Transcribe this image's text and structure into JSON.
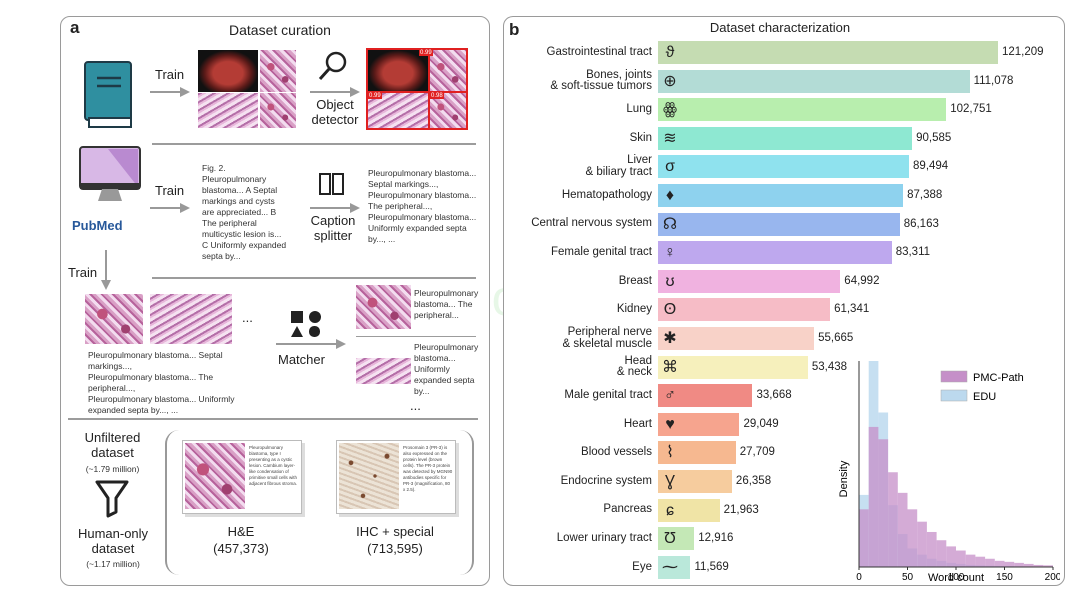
{
  "panel_a": {
    "label": "a",
    "title": "Dataset curation",
    "train_labels": [
      "Train",
      "Train",
      "Train"
    ],
    "object_detector": "Object\ndetector",
    "caption_splitter": "Caption\nsplitter",
    "matcher": "Matcher",
    "pubmed": "PubMed",
    "fig_caption": "Fig. 2.\nPleuropulmonary\nblastoma... A Septal\nmarkings and cysts\nare appreciated... B\nThe peripheral\nmulticystic lesion is...\nC Uniformly expanded\nsepta by...",
    "split_captions": "Pleuropulmonary blastoma...\nSeptal markings...,\nPleuropulmonary blastoma...\nThe peripheral...,\nPleuropulmonary blastoma...\nUniformly expanded septa\nby..., ...",
    "ellipsis": "...",
    "matched_left_caption": "Pleuropulmonary blastoma... Septal\nmarkings...,\nPleuropulmonary blastoma... The\nperipheral...,\nPleuropulmonary blastoma... Uniformly\nexpanded septa by..., ...",
    "matched_right_1": "Pleuropulmonary\nblastoma... The\nperipheral...",
    "matched_right_2": "Pleuropulmonary\nblastoma...\nUniformly\nexpanded septa\nby...",
    "unfiltered_label": "Unfiltered\ndataset",
    "unfiltered_count": "(~1.79 million)",
    "human_label": "Human-only\ndataset",
    "human_count": "(~1.17 million)",
    "he_label": "H&E",
    "he_count": "(457,373)",
    "ihc_label": "IHC + special",
    "ihc_count": "(713,595)",
    "he_card_text": "Pleuropulmonary blastoma, type I presenting as a cystic lesion. Cambium layer-like condensation of primitive small cells with adjacent fibrous stroma.",
    "ihc_card_text": "Prosomain 3 (PR-3) is also expressed on the protein level (brown cells). The PR-3 protein was detected by MGN90 antibodies specific for PR-3 (magnification, 80 x 2.5).",
    "detect_scores": [
      "0.99",
      "0.99",
      "0.98"
    ]
  },
  "panel_b": {
    "label": "b",
    "title": "Dataset characterization"
  },
  "chart_data": [
    {
      "type": "bar",
      "orientation": "horizontal",
      "categories": [
        "Gastrointestinal tract",
        "Bones, joints\n& soft-tissue tumors",
        "Lung",
        "Skin",
        "Liver\n& biliary tract",
        "Hematopathology",
        "Central nervous system",
        "Female genital tract",
        "Breast",
        "Kidney",
        "Peripheral nerve\n& skeletal muscle",
        "Head\n& neck",
        "Male genital tract",
        "Heart",
        "Blood vessels",
        "Endocrine system",
        "Pancreas",
        "Lower urinary tract",
        "Eye"
      ],
      "values": [
        121209,
        111078,
        102751,
        90585,
        89494,
        87388,
        86163,
        83311,
        64992,
        61341,
        55665,
        53438,
        33668,
        29049,
        27709,
        26358,
        21963,
        12916,
        11569
      ],
      "value_labels": [
        "121,209",
        "111,078",
        "102,751",
        "90,585",
        "89,494",
        "87,388",
        "86,163",
        "83,311",
        "64,992",
        "61,341",
        "55,665",
        "53,438",
        "33,668",
        "29,049",
        "27,709",
        "26,358",
        "21,963",
        "12,916",
        "11,569"
      ],
      "colors": [
        "#c5dcb2",
        "#b3dcd6",
        "#b8eeae",
        "#8ee8d2",
        "#8fe2ee",
        "#8ed2ee",
        "#98b6ee",
        "#bea8ee",
        "#f0b2e0",
        "#f6bcc6",
        "#f8d2c8",
        "#f6f0bc",
        "#f08a84",
        "#f6a48e",
        "#f6b890",
        "#f6cc9e",
        "#f0e4a6",
        "#c4e8b6",
        "#bae8da"
      ],
      "icons": [
        "stomach-icon",
        "bone-icon",
        "lung-icon",
        "skin-icon",
        "liver-icon",
        "blood-drop-icon",
        "brain-icon",
        "female-icon",
        "breast-icon",
        "kidney-icon",
        "nerve-icon",
        "head-neck-icon",
        "male-icon",
        "heart-icon",
        "blood-vessel-icon",
        "thyroid-icon",
        "pancreas-icon",
        "bladder-icon",
        "eye-icon"
      ],
      "xlim": [
        0,
        121209
      ]
    },
    {
      "type": "histogram",
      "xlabel": "Word count",
      "ylabel": "Density",
      "xlim": [
        0,
        200
      ],
      "xticks": [
        "0",
        "50",
        "100",
        "150",
        "200"
      ],
      "legend_placement": "top-right",
      "bin_edges": [
        0,
        10,
        20,
        30,
        40,
        50,
        60,
        70,
        80,
        90,
        100,
        110,
        120,
        130,
        140,
        150,
        160,
        170,
        180,
        190,
        200
      ],
      "series": [
        {
          "name": "PMC-Path",
          "color": "#c58fc8",
          "values": [
            0.28,
            0.68,
            0.62,
            0.46,
            0.36,
            0.28,
            0.22,
            0.17,
            0.13,
            0.1,
            0.08,
            0.06,
            0.05,
            0.04,
            0.03,
            0.025,
            0.02,
            0.015,
            0.01,
            0.008
          ]
        },
        {
          "name": "EDU",
          "color": "#bcd9ee",
          "values": [
            0.35,
            1.0,
            0.75,
            0.3,
            0.16,
            0.09,
            0.06,
            0.04,
            0.03,
            0.02,
            0.015,
            0.01,
            0.008,
            0.006,
            0.005,
            0.004,
            0.003,
            0.002,
            0.002,
            0.001
          ]
        }
      ]
    }
  ]
}
